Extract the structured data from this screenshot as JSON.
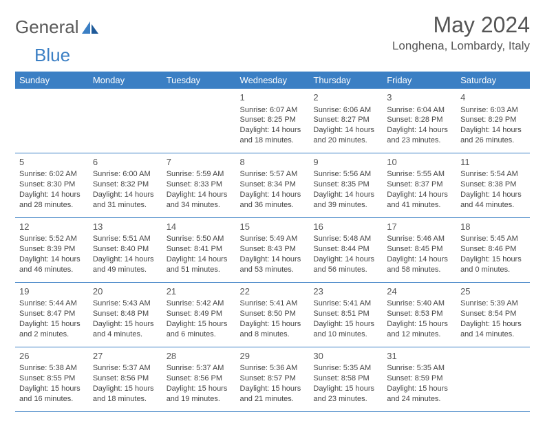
{
  "colors": {
    "header_bg": "#3b7fc4",
    "header_text": "#ffffff",
    "border": "#3b7fc4",
    "body_text": "#444444",
    "title_text": "#555555",
    "logo_gray": "#5a5a5a",
    "logo_blue": "#3b7fc4",
    "background": "#ffffff"
  },
  "logo": {
    "part1": "General",
    "part2": "Blue"
  },
  "title": "May 2024",
  "location": "Longhena, Lombardy, Italy",
  "weekdays": [
    "Sunday",
    "Monday",
    "Tuesday",
    "Wednesday",
    "Thursday",
    "Friday",
    "Saturday"
  ],
  "weeks": [
    [
      {
        "day": "",
        "lines": []
      },
      {
        "day": "",
        "lines": []
      },
      {
        "day": "",
        "lines": []
      },
      {
        "day": "1",
        "lines": [
          "Sunrise: 6:07 AM",
          "Sunset: 8:25 PM",
          "Daylight: 14 hours and 18 minutes."
        ]
      },
      {
        "day": "2",
        "lines": [
          "Sunrise: 6:06 AM",
          "Sunset: 8:27 PM",
          "Daylight: 14 hours and 20 minutes."
        ]
      },
      {
        "day": "3",
        "lines": [
          "Sunrise: 6:04 AM",
          "Sunset: 8:28 PM",
          "Daylight: 14 hours and 23 minutes."
        ]
      },
      {
        "day": "4",
        "lines": [
          "Sunrise: 6:03 AM",
          "Sunset: 8:29 PM",
          "Daylight: 14 hours and 26 minutes."
        ]
      }
    ],
    [
      {
        "day": "5",
        "lines": [
          "Sunrise: 6:02 AM",
          "Sunset: 8:30 PM",
          "Daylight: 14 hours and 28 minutes."
        ]
      },
      {
        "day": "6",
        "lines": [
          "Sunrise: 6:00 AM",
          "Sunset: 8:32 PM",
          "Daylight: 14 hours and 31 minutes."
        ]
      },
      {
        "day": "7",
        "lines": [
          "Sunrise: 5:59 AM",
          "Sunset: 8:33 PM",
          "Daylight: 14 hours and 34 minutes."
        ]
      },
      {
        "day": "8",
        "lines": [
          "Sunrise: 5:57 AM",
          "Sunset: 8:34 PM",
          "Daylight: 14 hours and 36 minutes."
        ]
      },
      {
        "day": "9",
        "lines": [
          "Sunrise: 5:56 AM",
          "Sunset: 8:35 PM",
          "Daylight: 14 hours and 39 minutes."
        ]
      },
      {
        "day": "10",
        "lines": [
          "Sunrise: 5:55 AM",
          "Sunset: 8:37 PM",
          "Daylight: 14 hours and 41 minutes."
        ]
      },
      {
        "day": "11",
        "lines": [
          "Sunrise: 5:54 AM",
          "Sunset: 8:38 PM",
          "Daylight: 14 hours and 44 minutes."
        ]
      }
    ],
    [
      {
        "day": "12",
        "lines": [
          "Sunrise: 5:52 AM",
          "Sunset: 8:39 PM",
          "Daylight: 14 hours and 46 minutes."
        ]
      },
      {
        "day": "13",
        "lines": [
          "Sunrise: 5:51 AM",
          "Sunset: 8:40 PM",
          "Daylight: 14 hours and 49 minutes."
        ]
      },
      {
        "day": "14",
        "lines": [
          "Sunrise: 5:50 AM",
          "Sunset: 8:41 PM",
          "Daylight: 14 hours and 51 minutes."
        ]
      },
      {
        "day": "15",
        "lines": [
          "Sunrise: 5:49 AM",
          "Sunset: 8:43 PM",
          "Daylight: 14 hours and 53 minutes."
        ]
      },
      {
        "day": "16",
        "lines": [
          "Sunrise: 5:48 AM",
          "Sunset: 8:44 PM",
          "Daylight: 14 hours and 56 minutes."
        ]
      },
      {
        "day": "17",
        "lines": [
          "Sunrise: 5:46 AM",
          "Sunset: 8:45 PM",
          "Daylight: 14 hours and 58 minutes."
        ]
      },
      {
        "day": "18",
        "lines": [
          "Sunrise: 5:45 AM",
          "Sunset: 8:46 PM",
          "Daylight: 15 hours and 0 minutes."
        ]
      }
    ],
    [
      {
        "day": "19",
        "lines": [
          "Sunrise: 5:44 AM",
          "Sunset: 8:47 PM",
          "Daylight: 15 hours and 2 minutes."
        ]
      },
      {
        "day": "20",
        "lines": [
          "Sunrise: 5:43 AM",
          "Sunset: 8:48 PM",
          "Daylight: 15 hours and 4 minutes."
        ]
      },
      {
        "day": "21",
        "lines": [
          "Sunrise: 5:42 AM",
          "Sunset: 8:49 PM",
          "Daylight: 15 hours and 6 minutes."
        ]
      },
      {
        "day": "22",
        "lines": [
          "Sunrise: 5:41 AM",
          "Sunset: 8:50 PM",
          "Daylight: 15 hours and 8 minutes."
        ]
      },
      {
        "day": "23",
        "lines": [
          "Sunrise: 5:41 AM",
          "Sunset: 8:51 PM",
          "Daylight: 15 hours and 10 minutes."
        ]
      },
      {
        "day": "24",
        "lines": [
          "Sunrise: 5:40 AM",
          "Sunset: 8:53 PM",
          "Daylight: 15 hours and 12 minutes."
        ]
      },
      {
        "day": "25",
        "lines": [
          "Sunrise: 5:39 AM",
          "Sunset: 8:54 PM",
          "Daylight: 15 hours and 14 minutes."
        ]
      }
    ],
    [
      {
        "day": "26",
        "lines": [
          "Sunrise: 5:38 AM",
          "Sunset: 8:55 PM",
          "Daylight: 15 hours and 16 minutes."
        ]
      },
      {
        "day": "27",
        "lines": [
          "Sunrise: 5:37 AM",
          "Sunset: 8:56 PM",
          "Daylight: 15 hours and 18 minutes."
        ]
      },
      {
        "day": "28",
        "lines": [
          "Sunrise: 5:37 AM",
          "Sunset: 8:56 PM",
          "Daylight: 15 hours and 19 minutes."
        ]
      },
      {
        "day": "29",
        "lines": [
          "Sunrise: 5:36 AM",
          "Sunset: 8:57 PM",
          "Daylight: 15 hours and 21 minutes."
        ]
      },
      {
        "day": "30",
        "lines": [
          "Sunrise: 5:35 AM",
          "Sunset: 8:58 PM",
          "Daylight: 15 hours and 23 minutes."
        ]
      },
      {
        "day": "31",
        "lines": [
          "Sunrise: 5:35 AM",
          "Sunset: 8:59 PM",
          "Daylight: 15 hours and 24 minutes."
        ]
      },
      {
        "day": "",
        "lines": []
      }
    ]
  ]
}
